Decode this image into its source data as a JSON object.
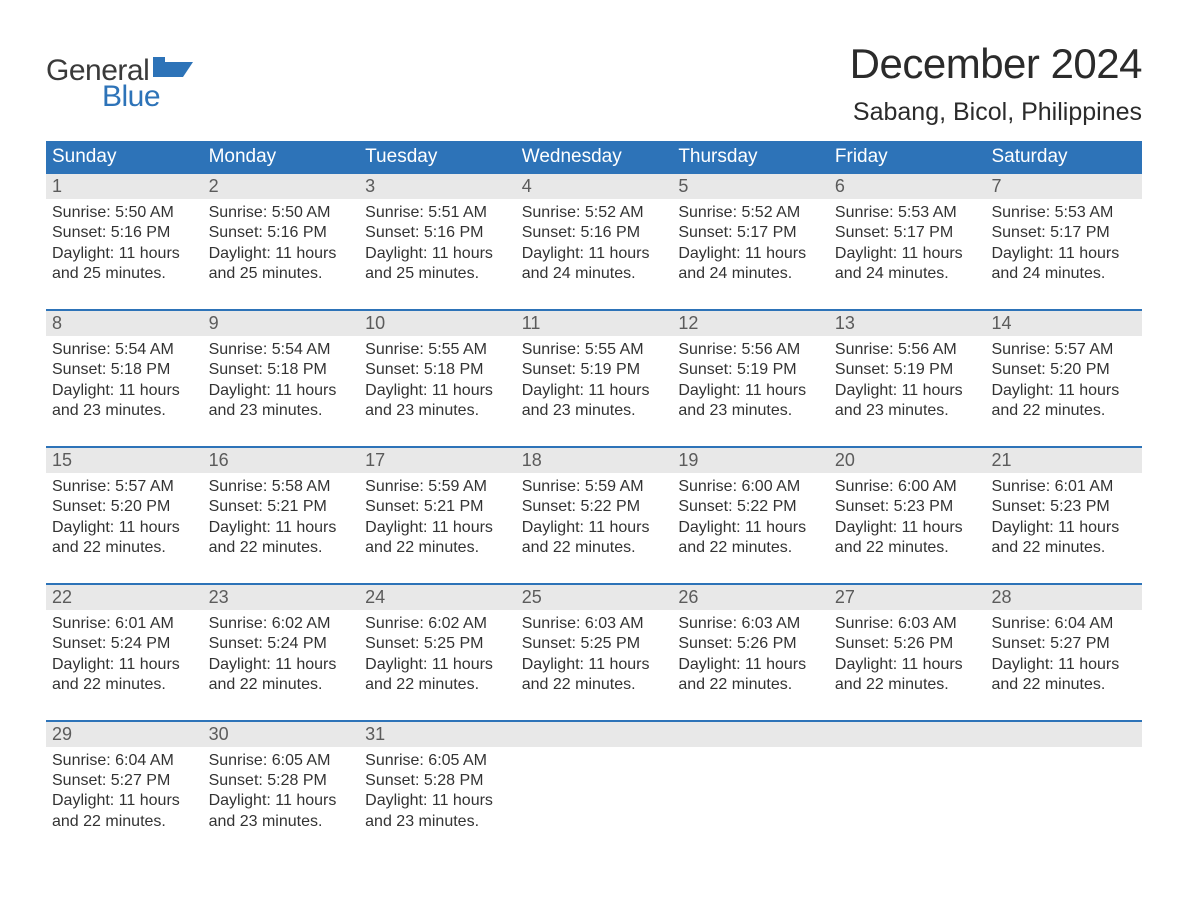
{
  "logo": {
    "general": "General",
    "blue": "Blue",
    "flag_color": "#2d73b8"
  },
  "title": {
    "month": "December 2024",
    "location": "Sabang, Bicol, Philippines"
  },
  "colors": {
    "header_bg": "#2d73b8",
    "header_text": "#ffffff",
    "daynum_bg": "#e8e8e8",
    "daynum_text": "#5b5b5b",
    "body_text": "#333333",
    "week_border": "#2d73b8",
    "page_bg": "#ffffff"
  },
  "days_of_week": [
    "Sunday",
    "Monday",
    "Tuesday",
    "Wednesday",
    "Thursday",
    "Friday",
    "Saturday"
  ],
  "weeks": [
    [
      {
        "n": "1",
        "sr": "Sunrise: 5:50 AM",
        "ss": "Sunset: 5:16 PM",
        "d1": "Daylight: 11 hours",
        "d2": "and 25 minutes."
      },
      {
        "n": "2",
        "sr": "Sunrise: 5:50 AM",
        "ss": "Sunset: 5:16 PM",
        "d1": "Daylight: 11 hours",
        "d2": "and 25 minutes."
      },
      {
        "n": "3",
        "sr": "Sunrise: 5:51 AM",
        "ss": "Sunset: 5:16 PM",
        "d1": "Daylight: 11 hours",
        "d2": "and 25 minutes."
      },
      {
        "n": "4",
        "sr": "Sunrise: 5:52 AM",
        "ss": "Sunset: 5:16 PM",
        "d1": "Daylight: 11 hours",
        "d2": "and 24 minutes."
      },
      {
        "n": "5",
        "sr": "Sunrise: 5:52 AM",
        "ss": "Sunset: 5:17 PM",
        "d1": "Daylight: 11 hours",
        "d2": "and 24 minutes."
      },
      {
        "n": "6",
        "sr": "Sunrise: 5:53 AM",
        "ss": "Sunset: 5:17 PM",
        "d1": "Daylight: 11 hours",
        "d2": "and 24 minutes."
      },
      {
        "n": "7",
        "sr": "Sunrise: 5:53 AM",
        "ss": "Sunset: 5:17 PM",
        "d1": "Daylight: 11 hours",
        "d2": "and 24 minutes."
      }
    ],
    [
      {
        "n": "8",
        "sr": "Sunrise: 5:54 AM",
        "ss": "Sunset: 5:18 PM",
        "d1": "Daylight: 11 hours",
        "d2": "and 23 minutes."
      },
      {
        "n": "9",
        "sr": "Sunrise: 5:54 AM",
        "ss": "Sunset: 5:18 PM",
        "d1": "Daylight: 11 hours",
        "d2": "and 23 minutes."
      },
      {
        "n": "10",
        "sr": "Sunrise: 5:55 AM",
        "ss": "Sunset: 5:18 PM",
        "d1": "Daylight: 11 hours",
        "d2": "and 23 minutes."
      },
      {
        "n": "11",
        "sr": "Sunrise: 5:55 AM",
        "ss": "Sunset: 5:19 PM",
        "d1": "Daylight: 11 hours",
        "d2": "and 23 minutes."
      },
      {
        "n": "12",
        "sr": "Sunrise: 5:56 AM",
        "ss": "Sunset: 5:19 PM",
        "d1": "Daylight: 11 hours",
        "d2": "and 23 minutes."
      },
      {
        "n": "13",
        "sr": "Sunrise: 5:56 AM",
        "ss": "Sunset: 5:19 PM",
        "d1": "Daylight: 11 hours",
        "d2": "and 23 minutes."
      },
      {
        "n": "14",
        "sr": "Sunrise: 5:57 AM",
        "ss": "Sunset: 5:20 PM",
        "d1": "Daylight: 11 hours",
        "d2": "and 22 minutes."
      }
    ],
    [
      {
        "n": "15",
        "sr": "Sunrise: 5:57 AM",
        "ss": "Sunset: 5:20 PM",
        "d1": "Daylight: 11 hours",
        "d2": "and 22 minutes."
      },
      {
        "n": "16",
        "sr": "Sunrise: 5:58 AM",
        "ss": "Sunset: 5:21 PM",
        "d1": "Daylight: 11 hours",
        "d2": "and 22 minutes."
      },
      {
        "n": "17",
        "sr": "Sunrise: 5:59 AM",
        "ss": "Sunset: 5:21 PM",
        "d1": "Daylight: 11 hours",
        "d2": "and 22 minutes."
      },
      {
        "n": "18",
        "sr": "Sunrise: 5:59 AM",
        "ss": "Sunset: 5:22 PM",
        "d1": "Daylight: 11 hours",
        "d2": "and 22 minutes."
      },
      {
        "n": "19",
        "sr": "Sunrise: 6:00 AM",
        "ss": "Sunset: 5:22 PM",
        "d1": "Daylight: 11 hours",
        "d2": "and 22 minutes."
      },
      {
        "n": "20",
        "sr": "Sunrise: 6:00 AM",
        "ss": "Sunset: 5:23 PM",
        "d1": "Daylight: 11 hours",
        "d2": "and 22 minutes."
      },
      {
        "n": "21",
        "sr": "Sunrise: 6:01 AM",
        "ss": "Sunset: 5:23 PM",
        "d1": "Daylight: 11 hours",
        "d2": "and 22 minutes."
      }
    ],
    [
      {
        "n": "22",
        "sr": "Sunrise: 6:01 AM",
        "ss": "Sunset: 5:24 PM",
        "d1": "Daylight: 11 hours",
        "d2": "and 22 minutes."
      },
      {
        "n": "23",
        "sr": "Sunrise: 6:02 AM",
        "ss": "Sunset: 5:24 PM",
        "d1": "Daylight: 11 hours",
        "d2": "and 22 minutes."
      },
      {
        "n": "24",
        "sr": "Sunrise: 6:02 AM",
        "ss": "Sunset: 5:25 PM",
        "d1": "Daylight: 11 hours",
        "d2": "and 22 minutes."
      },
      {
        "n": "25",
        "sr": "Sunrise: 6:03 AM",
        "ss": "Sunset: 5:25 PM",
        "d1": "Daylight: 11 hours",
        "d2": "and 22 minutes."
      },
      {
        "n": "26",
        "sr": "Sunrise: 6:03 AM",
        "ss": "Sunset: 5:26 PM",
        "d1": "Daylight: 11 hours",
        "d2": "and 22 minutes."
      },
      {
        "n": "27",
        "sr": "Sunrise: 6:03 AM",
        "ss": "Sunset: 5:26 PM",
        "d1": "Daylight: 11 hours",
        "d2": "and 22 minutes."
      },
      {
        "n": "28",
        "sr": "Sunrise: 6:04 AM",
        "ss": "Sunset: 5:27 PM",
        "d1": "Daylight: 11 hours",
        "d2": "and 22 minutes."
      }
    ],
    [
      {
        "n": "29",
        "sr": "Sunrise: 6:04 AM",
        "ss": "Sunset: 5:27 PM",
        "d1": "Daylight: 11 hours",
        "d2": "and 22 minutes."
      },
      {
        "n": "30",
        "sr": "Sunrise: 6:05 AM",
        "ss": "Sunset: 5:28 PM",
        "d1": "Daylight: 11 hours",
        "d2": "and 23 minutes."
      },
      {
        "n": "31",
        "sr": "Sunrise: 6:05 AM",
        "ss": "Sunset: 5:28 PM",
        "d1": "Daylight: 11 hours",
        "d2": "and 23 minutes."
      },
      null,
      null,
      null,
      null
    ]
  ]
}
